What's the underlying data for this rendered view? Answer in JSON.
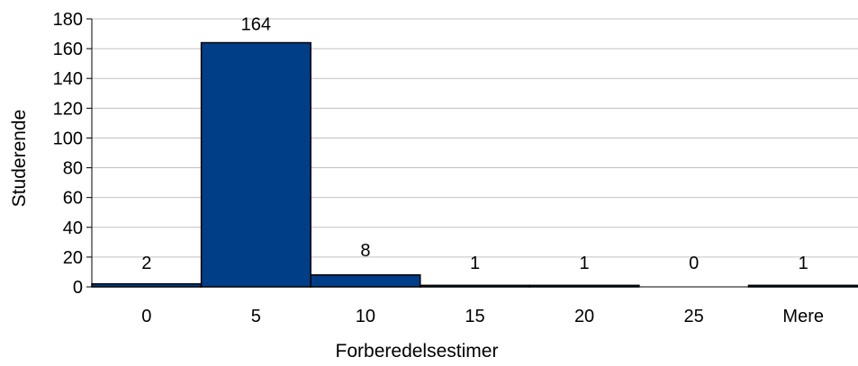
{
  "chart_data": {
    "type": "bar",
    "categories": [
      "0",
      "5",
      "10",
      "15",
      "20",
      "25",
      "Mere"
    ],
    "values": [
      2,
      164,
      8,
      1,
      1,
      0,
      1
    ],
    "xlabel": "Forberedelsestimer",
    "ylabel": "Studerende",
    "ylim": [
      0,
      180
    ],
    "yticks": [
      0,
      20,
      40,
      60,
      80,
      100,
      120,
      140,
      160,
      180
    ],
    "grid": true,
    "bar_color": "#003F87",
    "bar_edge_color": "#000000",
    "gridline_color": "#C0C0C0"
  }
}
